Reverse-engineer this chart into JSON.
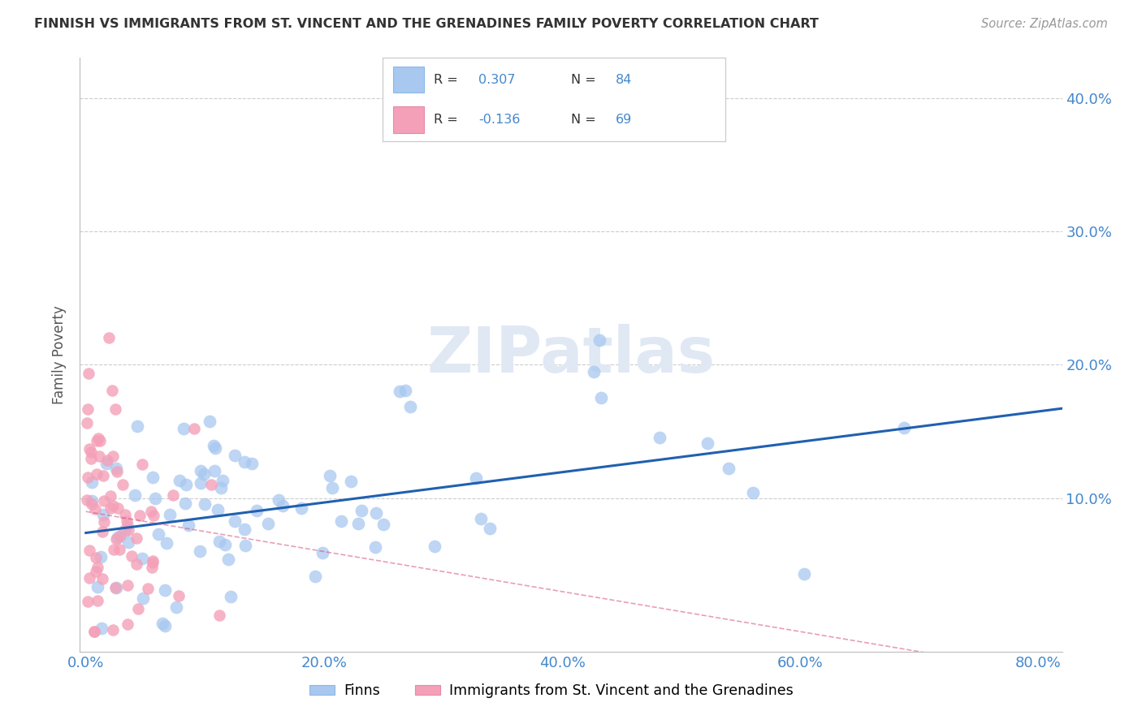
{
  "title": "FINNISH VS IMMIGRANTS FROM ST. VINCENT AND THE GRENADINES FAMILY POVERTY CORRELATION CHART",
  "source": "Source: ZipAtlas.com",
  "ylabel": "Family Poverty",
  "R_finns": 0.307,
  "N_finns": 84,
  "R_immigrants": -0.136,
  "N_immigrants": 69,
  "finns_color": "#a8c8f0",
  "immigrants_color": "#f4a0b8",
  "finns_line_color": "#2060b0",
  "immigrants_line_color": "#d04070",
  "legend_finns": "Finns",
  "legend_immigrants": "Immigrants from St. Vincent and the Grenadines",
  "watermark": "ZIPatlas",
  "tick_color": "#4488cc",
  "grid_color": "#cccccc",
  "xlim": [
    -0.005,
    0.82
  ],
  "ylim": [
    -0.015,
    0.43
  ],
  "xtick_vals": [
    0.0,
    0.2,
    0.4,
    0.6,
    0.8
  ],
  "ytick_vals": [
    0.0,
    0.1,
    0.2,
    0.3,
    0.4
  ],
  "xtick_labels": [
    "0.0%",
    "20.0%",
    "40.0%",
    "60.0%",
    "80.0%"
  ],
  "ytick_labels": [
    "",
    "10.0%",
    "20.0%",
    "30.0%",
    "40.0%"
  ]
}
